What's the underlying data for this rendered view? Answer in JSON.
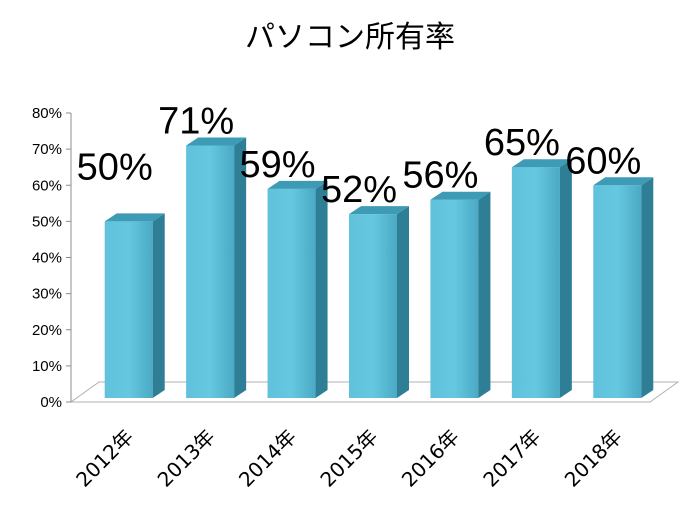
{
  "chart_data": {
    "type": "bar",
    "title": "パソコン所有率",
    "categories": [
      "2012年",
      "2013年",
      "2014年",
      "2015年",
      "2016年",
      "2017年",
      "2018年"
    ],
    "values": [
      50,
      71,
      59,
      52,
      56,
      65,
      60
    ],
    "data_labels": [
      "50%",
      "71%",
      "59%",
      "52%",
      "56%",
      "65%",
      "60%"
    ],
    "y_ticks": [
      "0%",
      "10%",
      "20%",
      "30%",
      "40%",
      "50%",
      "60%",
      "70%",
      "80%"
    ],
    "ylim": [
      0,
      80
    ],
    "grid": false,
    "legend": "none",
    "bar_color": "#4fb3cf",
    "bar_side_color": "#2e7f96",
    "bar_top_color": "#3d9bb5"
  }
}
